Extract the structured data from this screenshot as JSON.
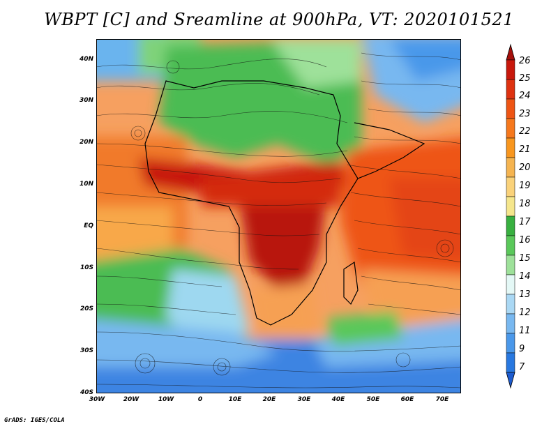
{
  "title": "WBPT [C] and Sreamline at 900hPa, VT: 2020101521",
  "lat_labels": [
    "40N",
    "30N",
    "20N",
    "10N",
    "EQ",
    "10S",
    "20S",
    "30S",
    "40S"
  ],
  "lon_labels": [
    "30W",
    "20W",
    "10W",
    "0",
    "10E",
    "20E",
    "30E",
    "40E",
    "50E",
    "60E",
    "70E"
  ],
  "colorbar": {
    "labels": [
      "26",
      "25",
      "24",
      "23",
      "22",
      "21",
      "20",
      "19",
      "18",
      "17",
      "16",
      "15",
      "14",
      "13",
      "12",
      "11",
      "9",
      "7"
    ],
    "colors": [
      "#a50f0a",
      "#c8180c",
      "#de3210",
      "#ee5514",
      "#f6781c",
      "#f8961e",
      "#f5b450",
      "#fad27a",
      "#f5e68c",
      "#38b040",
      "#5ac85a",
      "#9ee19a",
      "#e4f8f6",
      "#aad8f4",
      "#78b8f0",
      "#4a98ea",
      "#2878e0",
      "#1d5cd0"
    ]
  },
  "credit": "GrADS: IGES/COLA"
}
